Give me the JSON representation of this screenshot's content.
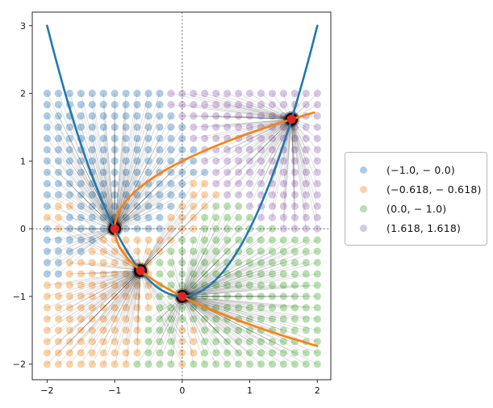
{
  "figure": {
    "background": "#ffffff",
    "axes": {
      "xlim": [
        -2.22,
        2.2
      ],
      "ylim": [
        -2.23,
        3.2
      ],
      "x_ticks": [
        {
          "value": -2,
          "label": "−2"
        },
        {
          "value": -1,
          "label": "−1"
        },
        {
          "value": 0,
          "label": "0"
        },
        {
          "value": 1,
          "label": "1"
        },
        {
          "value": 2,
          "label": "2"
        }
      ],
      "y_ticks": [
        {
          "value": 3,
          "label": "3"
        },
        {
          "value": 2,
          "label": "2"
        },
        {
          "value": 1,
          "label": "1"
        },
        {
          "value": 0,
          "label": "0"
        },
        {
          "value": -1,
          "label": "−1"
        },
        {
          "value": -2,
          "label": "−2"
        }
      ],
      "zero_lines": {
        "horizontal_y": 0,
        "vertical_x": 0,
        "style": "dashed",
        "color": "#444444"
      }
    }
  },
  "legend": {
    "entries": [
      {
        "label": "(−1.0, − 0.0)",
        "color": "#aecbe3",
        "attractor_key": "b"
      },
      {
        "label": "(−0.618, − 0.618)",
        "color": "#fbd1a7",
        "attractor_key": "o"
      },
      {
        "label": "(0.0, − 1.0)",
        "color": "#b7dfb0",
        "attractor_key": "g"
      },
      {
        "label": "(1.618, 1.618)",
        "color": "#d7c6e4",
        "attractor_key": "p"
      }
    ]
  },
  "chart_data": {
    "type": "scatter",
    "description": "Basins of attraction: a 25x25 grid of starting points, each colored by which fixed point it converges to; thin dark lines join every grid point to its attractor; blue curve y = x^2 - 1 and orange curve x = y^2 - 1 intersect at the four attractors (red dots).",
    "grid": {
      "x_start": -2,
      "x_end": 2,
      "nx": 25,
      "y_top": 2,
      "y_bottom": -2,
      "ny": 25,
      "color_codes": {
        "b": "#aecbe3",
        "o": "#fbd1a7",
        "g": "#b7dfb0",
        "p": "#d7c6e4"
      },
      "rows_top_to_bottom": [
        "bbbbbbbbbbbpppppppppppppp",
        "bbbbbbbbbbbpppppppppppppp",
        "bbbbbbbbbbbbppppppppppppp",
        "bbbbbbbbbbbbbpppppppppppp",
        "bbbbbbbbbbbbbpppppppppppp",
        "bbbbbbbbbbbbbbppppppppppp",
        "bbbbbbbbbbbbbbppppppppppp",
        "bbbbbbbbbbbbbbbpppppppppp",
        "bbbbbbbbbbbbboopppppppppp",
        "bbbbbbbbbbbbboooppppppppp",
        "boobbbbbbbbbooogggppppppp",
        "oobbbbbbbbbooogggggpppppp",
        "bobbbbbbbbbooogggggggpppp",
        "bbbbboooooooggggggggggggg",
        "bbbbooooooogggggggggggggg",
        "bbooooooooggggggggggggggg",
        "bbooooooooggggggggggggggg",
        "ooooooooooggggggggggggggg",
        "ooooooooooggggggggggggggg",
        "ooooooooooggggggggggggggg",
        "ooooooooogggggggggggggggg",
        "ooooooooogggooggggggggggg",
        "ooooooooogggooggggggggggg",
        "ooooooooogggooggggggggggg",
        "ooooooooggggogggggggggggg"
      ]
    },
    "attractors": [
      {
        "key": "b",
        "x": -1.0,
        "y": 0.0,
        "label": "(−1.0, − 0.0)"
      },
      {
        "key": "o",
        "x": -0.618,
        "y": -0.618,
        "label": "(−0.618, − 0.618)"
      },
      {
        "key": "g",
        "x": 0.0,
        "y": -1.0,
        "label": "(0.0, − 1.0)"
      },
      {
        "key": "p",
        "x": 1.618,
        "y": 1.618,
        "label": "(1.618, 1.618)"
      }
    ],
    "curves": [
      {
        "name": "parabola y = x²−1",
        "color": "#2277b4",
        "param": "x",
        "domain": [
          -2,
          2
        ]
      },
      {
        "name": "parabola x = y²−1",
        "color": "#ff7f0e",
        "param": "y",
        "domain": [
          -1.732,
          1.732
        ]
      }
    ],
    "marker_colors": {
      "attractor_dot": "#e02525",
      "convergence_blob": "#000000",
      "connector_line": "#000000"
    }
  }
}
